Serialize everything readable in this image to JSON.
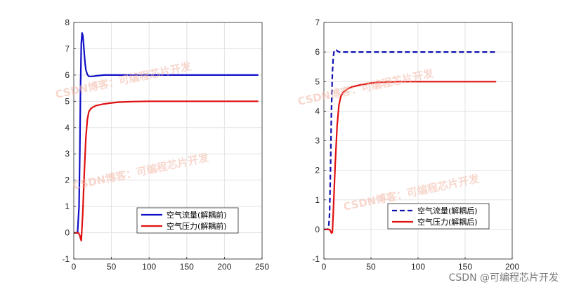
{
  "chart_data": [
    {
      "type": "line",
      "xlim": [
        0,
        250
      ],
      "ylim": [
        -1,
        8
      ],
      "xticks": [
        0,
        50,
        100,
        150,
        200,
        250
      ],
      "yticks": [
        -1,
        0,
        1,
        2,
        3,
        4,
        5,
        6,
        7,
        8
      ],
      "grid": true,
      "legend_position": "bottom-right",
      "series": [
        {
          "name": "空气流量(解耦前)",
          "color": "#1010c8",
          "style": "solid",
          "x": [
            0,
            5,
            7,
            8,
            9,
            10,
            11,
            12,
            13,
            14,
            15,
            16,
            18,
            20,
            25,
            30,
            40,
            60,
            100,
            150,
            200,
            245
          ],
          "y": [
            0,
            0,
            1,
            3,
            5.5,
            7.2,
            7.6,
            7.5,
            7.2,
            6.8,
            6.45,
            6.2,
            6.02,
            5.95,
            5.95,
            5.97,
            6.0,
            6.0,
            6.0,
            6.0,
            6.0,
            6.0
          ]
        },
        {
          "name": "空气压力(解耦前)",
          "color": "#e01010",
          "style": "solid",
          "x": [
            0,
            4,
            6,
            8,
            9,
            10,
            12,
            14,
            16,
            18,
            20,
            22,
            25,
            30,
            40,
            50,
            60,
            80,
            100,
            150,
            200,
            245
          ],
          "y": [
            0,
            0,
            0,
            -0.1,
            -0.22,
            -0.3,
            0.8,
            2.3,
            3.6,
            4.3,
            4.6,
            4.7,
            4.77,
            4.84,
            4.9,
            4.94,
            4.97,
            4.99,
            5.0,
            5.0,
            5.0,
            5.0
          ]
        }
      ]
    },
    {
      "type": "line",
      "xlim": [
        0,
        200
      ],
      "ylim": [
        -1,
        7
      ],
      "xticks": [
        0,
        50,
        100,
        150,
        200
      ],
      "yticks": [
        -1,
        0,
        1,
        2,
        3,
        4,
        5,
        6,
        7
      ],
      "grid": true,
      "legend_position": "bottom-right",
      "series": [
        {
          "name": "空气流量(解耦后)",
          "color": "#1010b0",
          "style": "dashed",
          "x": [
            0,
            4,
            5,
            6,
            7,
            8,
            9,
            10,
            11,
            12,
            13,
            14,
            16,
            18,
            20,
            25,
            30,
            50,
            100,
            150,
            183
          ],
          "y": [
            0,
            0,
            0.05,
            0.5,
            2,
            4,
            5.3,
            5.85,
            6.05,
            6.08,
            6.07,
            6.04,
            6.0,
            6.0,
            6.0,
            6.0,
            6.0,
            6.0,
            6.0,
            6.0,
            6.0
          ]
        },
        {
          "name": "空气压力(解耦后)",
          "color": "#e01010",
          "style": "solid",
          "x": [
            0,
            4,
            6,
            7,
            8,
            9,
            10,
            12,
            14,
            16,
            18,
            20,
            25,
            30,
            40,
            50,
            60,
            80,
            100,
            150,
            183
          ],
          "y": [
            0,
            0,
            0,
            -0.05,
            -0.12,
            -0.1,
            0.6,
            2.2,
            3.5,
            4.2,
            4.5,
            4.62,
            4.75,
            4.82,
            4.9,
            4.95,
            4.98,
            5.0,
            5.0,
            5.0,
            5.0
          ]
        }
      ]
    }
  ],
  "watermarks": [
    "CSDN博客：可编程芯片开发",
    "CSDN博客：可编程芯片开发",
    "CSDN博客：可编程芯片开发",
    "CSDN博客：可编程芯片开发"
  ],
  "footer": {
    "text": "CSDN @可编程芯片开发"
  }
}
